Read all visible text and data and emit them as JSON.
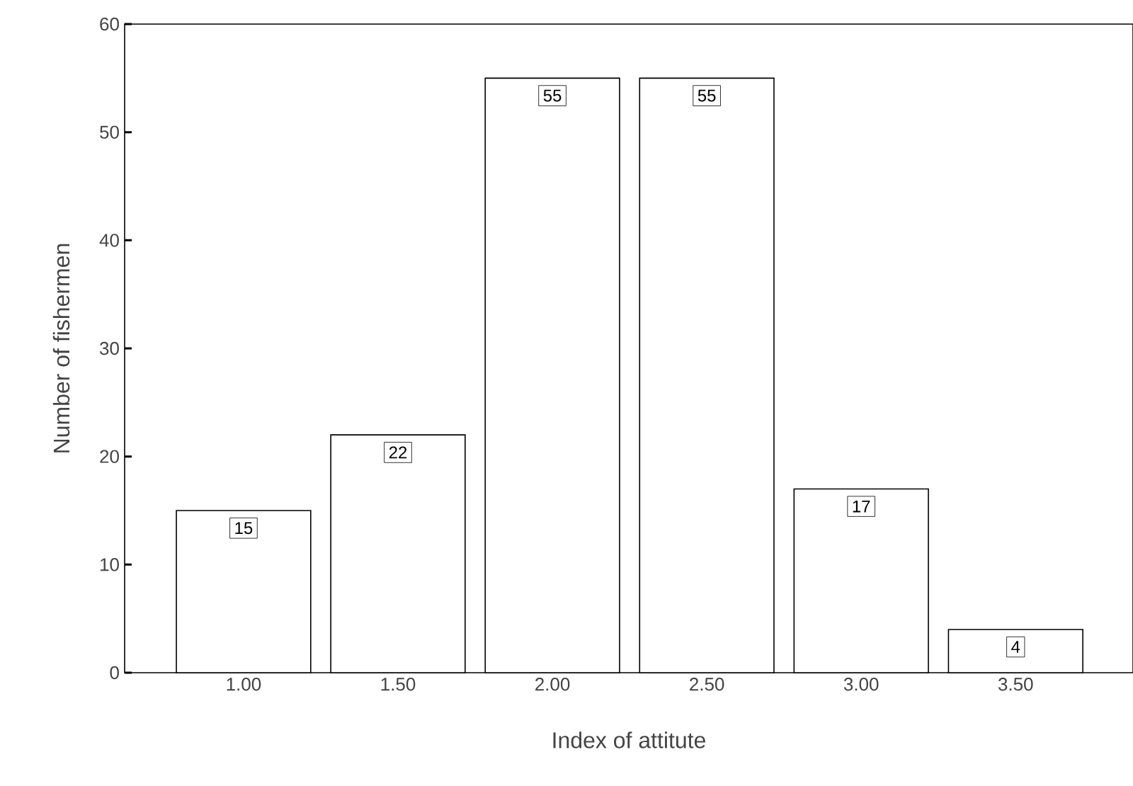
{
  "chart_data": {
    "type": "bar",
    "xlabel": "Index of attitute",
    "ylabel": "Number of fishermen",
    "categories": [
      "1.00",
      "1.50",
      "2.00",
      "2.50",
      "3.00",
      "3.50"
    ],
    "values": [
      15,
      22,
      55,
      55,
      17,
      4
    ],
    "color": "#ffffff",
    "ylim": [
      0,
      60
    ],
    "yticks": [
      0,
      10,
      20,
      30,
      40,
      50,
      60
    ],
    "data_labels": true,
    "grid": false
  }
}
